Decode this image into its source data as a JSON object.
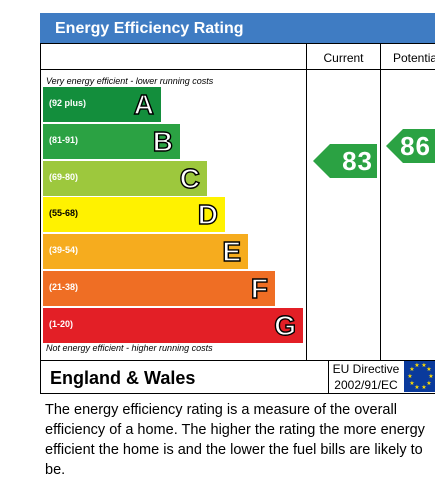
{
  "title": "Energy Efficiency Rating",
  "columns": {
    "current": "Current",
    "potential": "Potential"
  },
  "notes": {
    "top": "Very energy efficient - lower running costs",
    "bottom": "Not energy efficient - higher running costs"
  },
  "bands": [
    {
      "letter": "A",
      "range": "(92 plus)",
      "color": "#138e3c"
    },
    {
      "letter": "B",
      "range": "(81-91)",
      "color": "#2ba243"
    },
    {
      "letter": "C",
      "range": "(69-80)",
      "color": "#9dc83d"
    },
    {
      "letter": "D",
      "range": "(55-68)",
      "color": "#fff200"
    },
    {
      "letter": "E",
      "range": "(39-54)",
      "color": "#f6ac1e"
    },
    {
      "letter": "F",
      "range": "(21-38)",
      "color": "#ef6e24"
    },
    {
      "letter": "G",
      "range": "(1-20)",
      "color": "#e31f26"
    }
  ],
  "ratings": {
    "current": {
      "value": "83",
      "band": "B",
      "color": "#2ba243"
    },
    "potential": {
      "value": "86",
      "band": "B",
      "color": "#2ba243"
    }
  },
  "footer": {
    "region": "England & Wales",
    "directive_line1": "EU Directive",
    "directive_line2": "2002/91/EC"
  },
  "description": "The energy efficiency rating is a measure of the overall efficiency of a home. The higher the rating the more energy efficient the home is and the lower the fuel bills are likely to be.",
  "chart_data": {
    "type": "bar",
    "title": "Energy Efficiency Rating",
    "categories": [
      "A",
      "B",
      "C",
      "D",
      "E",
      "F",
      "G"
    ],
    "ranges": [
      "(92 plus)",
      "(81-91)",
      "(69-80)",
      "(55-68)",
      "(39-54)",
      "(21-38)",
      "(1-20)"
    ],
    "current": 83,
    "potential": 86
  }
}
